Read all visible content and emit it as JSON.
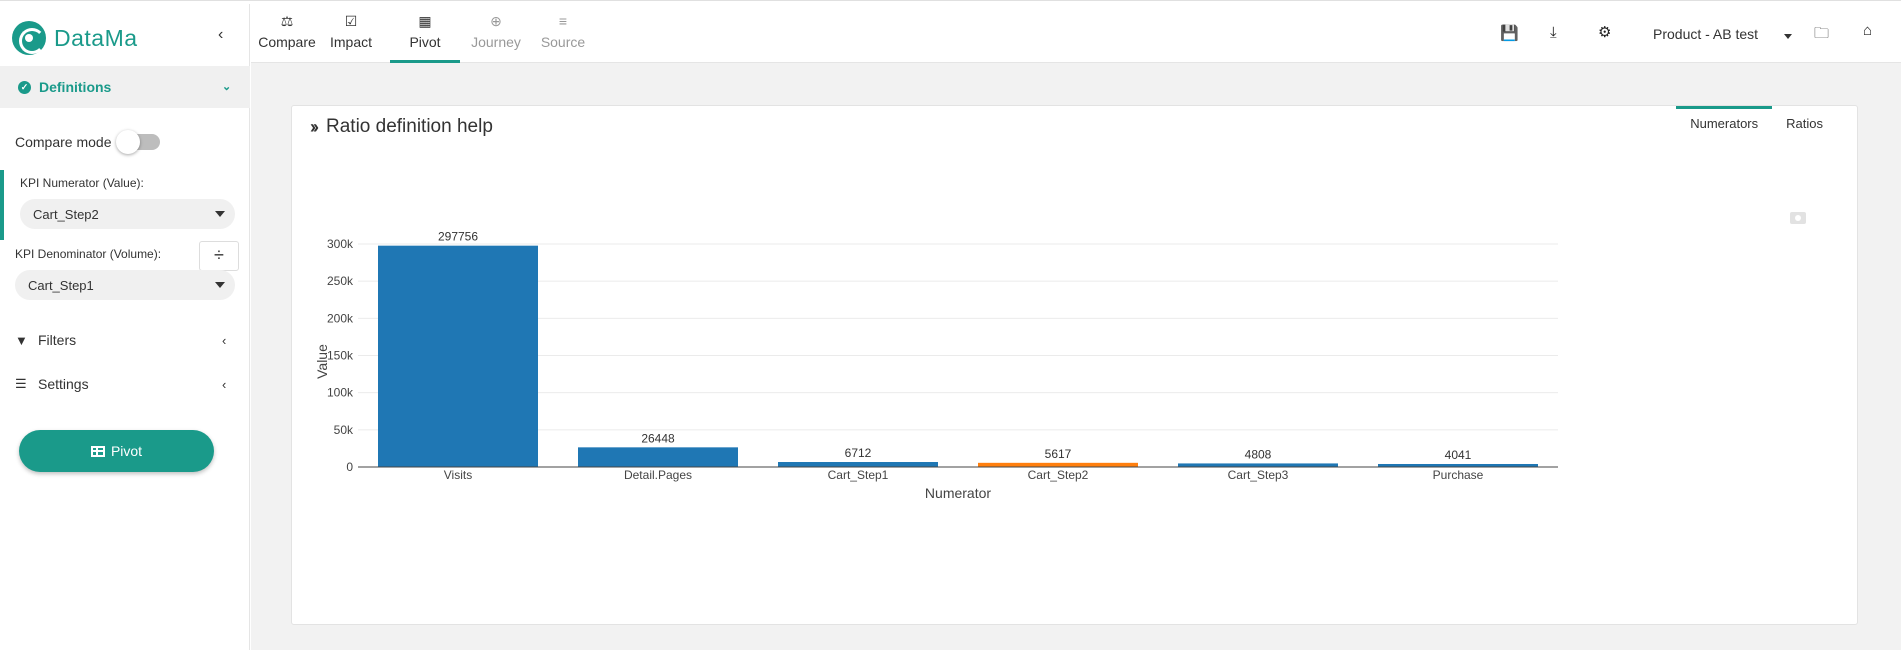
{
  "brand": {
    "name": "DataMa"
  },
  "nav_tabs": [
    {
      "label": "Compare",
      "icon": "balance-scale-icon",
      "state": "normal"
    },
    {
      "label": "Impact",
      "icon": "checkbox-icon",
      "state": "normal"
    },
    {
      "label": "Pivot",
      "icon": "table-icon",
      "state": "active"
    },
    {
      "label": "Journey",
      "icon": "globe-icon",
      "state": "disabled"
    },
    {
      "label": "Source",
      "icon": "database-icon",
      "state": "disabled"
    }
  ],
  "toolbar": {
    "icons": [
      "save-icon",
      "download-icon",
      "gear-icon"
    ],
    "project": "Product - AB test",
    "right_icons": [
      "folder-plus-icon",
      "home-icon"
    ]
  },
  "sidebar": {
    "definitions_label": "Definitions",
    "compare_mode_label": "Compare mode",
    "compare_mode_on": false,
    "numerator_label": "KPI Numerator (Value):",
    "numerator_value": "Cart_Step2",
    "denominator_label": "KPI Denominator (Volume):",
    "denominator_value": "Cart_Step1",
    "filters_label": "Filters",
    "settings_label": "Settings",
    "pivot_button": "Pivot"
  },
  "card": {
    "title": "Ratio definition help",
    "tabs": [
      "Numerators",
      "Ratios"
    ],
    "active_tab": "Numerators"
  },
  "colors": {
    "accent": "#1a9a8a",
    "bar": "#1f77b4",
    "highlight_bar": "#ff7f0e"
  },
  "chart_data": {
    "type": "bar",
    "categories": [
      "Visits",
      "Detail.Pages",
      "Cart_Step1",
      "Cart_Step2",
      "Cart_Step3",
      "Purchase"
    ],
    "values": [
      297756,
      26448,
      6712,
      5617,
      4808,
      4041
    ],
    "highlight_category": "Cart_Step2",
    "xlabel": "Numerator",
    "ylabel": "Value",
    "ylim": [
      0,
      300000
    ],
    "yticks": [
      0,
      50000,
      100000,
      150000,
      200000,
      250000,
      300000
    ],
    "ytick_labels": [
      "0",
      "50k",
      "100k",
      "150k",
      "200k",
      "250k",
      "300k"
    ],
    "grid": true
  }
}
